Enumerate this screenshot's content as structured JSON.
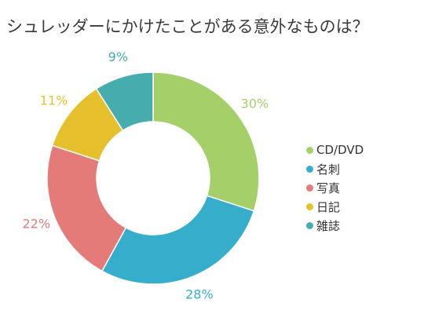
{
  "title": "シュレッダーにかけたことがある意外なものは？",
  "chart_data": {
    "type": "pie",
    "donut": true,
    "legend_position": "right",
    "categories": [
      "CD/DVD",
      "名刺",
      "写真",
      "日記",
      "雑誌"
    ],
    "values": [
      30,
      28,
      22,
      11,
      9
    ],
    "labels": [
      "30%",
      "28%",
      "22%",
      "11%",
      "9%"
    ],
    "colors": [
      "#a5cf68",
      "#36aecb",
      "#e47b79",
      "#e6c02c",
      "#46acad"
    ]
  }
}
